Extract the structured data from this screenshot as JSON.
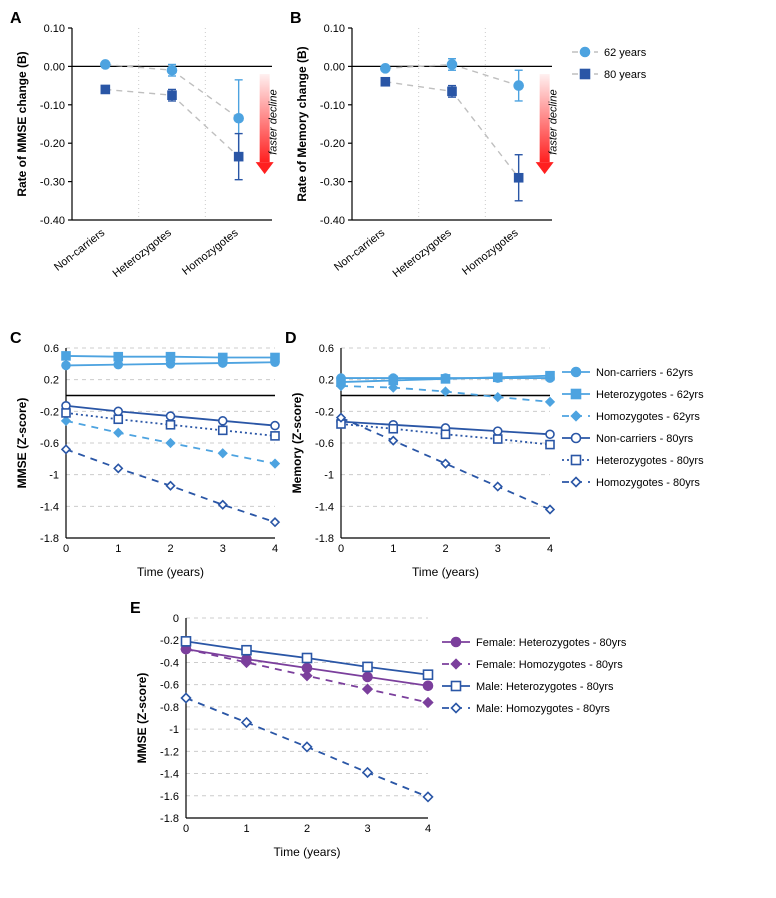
{
  "colors": {
    "light_blue": "#4da3e0",
    "dark_blue": "#2a56a6",
    "grid": "#cccccc",
    "dash": "#bfbfbf",
    "axis": "#000000",
    "purple": "#7b3f9c",
    "red_top": "#fff0f0",
    "red_bottom": "#ff2020"
  },
  "panel_AB": {
    "ylabel_A": "Rate of MMSE change (B)",
    "ylabel_B": "Rate of Memory change (B)",
    "ylim": [
      -0.4,
      0.1
    ],
    "yticks": [
      -0.4,
      -0.3,
      -0.2,
      -0.1,
      0.0,
      0.1
    ],
    "categories": [
      "Non-carriers",
      "Heterozygotes",
      "Homozygotes"
    ],
    "faster_label": "faster decline",
    "legend": [
      "62 years",
      "80 years"
    ],
    "A": {
      "y62": [
        0.005,
        -0.01,
        -0.135
      ],
      "err62": [
        0.005,
        0.015,
        0.1
      ],
      "y80": [
        -0.06,
        -0.075,
        -0.235
      ],
      "err80": [
        0.005,
        0.015,
        0.06
      ]
    },
    "B": {
      "y62": [
        -0.005,
        0.005,
        -0.05
      ],
      "err62": [
        0.005,
        0.015,
        0.04
      ],
      "y80": [
        -0.04,
        -0.065,
        -0.29
      ],
      "err80": [
        0.005,
        0.015,
        0.06
      ]
    }
  },
  "panel_CD": {
    "ylabel_C": "MMSE (Z-score)",
    "ylabel_D": "Memory (Z-score)",
    "xlabel": "Time (years)",
    "xlim": [
      0,
      4
    ],
    "xticks": [
      0,
      1,
      2,
      3,
      4
    ],
    "ylim": [
      -1.8,
      0.6
    ],
    "yticks": [
      -1.8,
      -1.4,
      -1.0,
      -0.6,
      -0.2,
      0.2,
      0.6
    ],
    "legend": [
      "Non-carriers - 62yrs",
      "Heterozygotes - 62yrs",
      "Homozygotes - 62yrs",
      "Non-carriers - 80yrs",
      "Heterozygotes - 80yrs",
      "Homozygotes - 80yrs"
    ],
    "C": {
      "nc62": [
        0.38,
        0.39,
        0.4,
        0.41,
        0.42
      ],
      "het62": [
        0.5,
        0.49,
        0.49,
        0.48,
        0.48
      ],
      "hom62": [
        -0.32,
        -0.47,
        -0.6,
        -0.73,
        -0.86
      ],
      "nc80": [
        -0.13,
        -0.2,
        -0.26,
        -0.32,
        -0.38
      ],
      "het80": [
        -0.22,
        -0.3,
        -0.37,
        -0.44,
        -0.51
      ],
      "hom80": [
        -0.68,
        -0.92,
        -1.14,
        -1.38,
        -1.6
      ]
    },
    "D": {
      "nc62": [
        0.22,
        0.22,
        0.22,
        0.22,
        0.22
      ],
      "het62": [
        0.17,
        0.19,
        0.21,
        0.23,
        0.25
      ],
      "hom62": [
        0.12,
        0.1,
        0.05,
        -0.02,
        -0.08
      ],
      "nc80": [
        -0.33,
        -0.37,
        -0.41,
        -0.45,
        -0.49
      ],
      "het80": [
        -0.36,
        -0.42,
        -0.49,
        -0.55,
        -0.62
      ],
      "hom80": [
        -0.28,
        -0.57,
        -0.86,
        -1.15,
        -1.44
      ]
    }
  },
  "panel_E": {
    "ylabel": "MMSE (Z-score)",
    "xlabel": "Time (years)",
    "xlim": [
      0,
      4
    ],
    "xticks": [
      0,
      1,
      2,
      3,
      4
    ],
    "ylim": [
      -1.8,
      0.0
    ],
    "yticks": [
      -1.8,
      -1.6,
      -1.4,
      -1.2,
      -1.0,
      -0.8,
      -0.6,
      -0.4,
      -0.2,
      0.0
    ],
    "legend": [
      "Female: Heterozygotes - 80yrs",
      "Female: Homozygotes - 80yrs",
      "Male: Heterozygotes - 80yrs",
      "Male: Homozygotes - 80yrs"
    ],
    "series": {
      "fhet": [
        -0.28,
        -0.37,
        -0.45,
        -0.53,
        -0.61
      ],
      "fhom": [
        -0.28,
        -0.4,
        -0.52,
        -0.64,
        -0.76
      ],
      "mhet": [
        -0.21,
        -0.29,
        -0.36,
        -0.44,
        -0.51
      ],
      "mhom": [
        -0.72,
        -0.94,
        -1.16,
        -1.39,
        -1.61
      ]
    }
  }
}
